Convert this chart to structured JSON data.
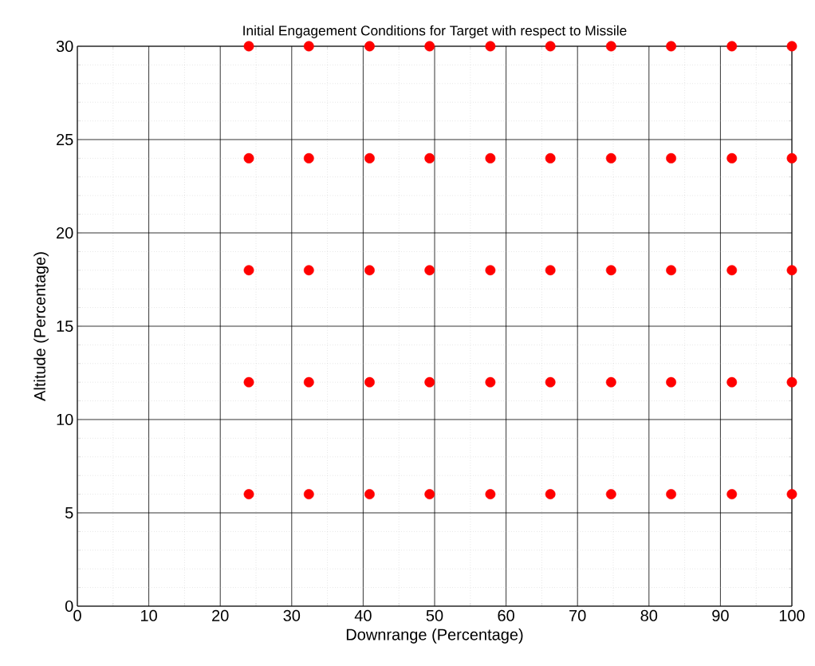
{
  "chart_data": {
    "type": "scatter",
    "title": "Initial Engagement Conditions for Target with respect to Missile",
    "xlabel": "Downrange (Percentage)",
    "ylabel": "Altitude (Percentage)",
    "series": [
      {
        "color": "#ff0000",
        "x": [
          24,
          24,
          24,
          24,
          24,
          32.4,
          32.4,
          32.4,
          32.4,
          32.4,
          40.9,
          40.9,
          40.9,
          40.9,
          40.9,
          49.3,
          49.3,
          49.3,
          49.3,
          49.3,
          57.8,
          57.8,
          57.8,
          57.8,
          57.8,
          66.2,
          66.2,
          66.2,
          66.2,
          66.2,
          74.7,
          74.7,
          74.7,
          74.7,
          74.7,
          83.1,
          83.1,
          83.1,
          83.1,
          83.1,
          91.6,
          91.6,
          91.6,
          91.6,
          91.6,
          100,
          100,
          100,
          100,
          100
        ],
        "values": [
          6,
          12,
          18,
          24,
          30,
          6,
          12,
          18,
          24,
          30,
          6,
          12,
          18,
          24,
          30,
          6,
          12,
          18,
          24,
          30,
          6,
          12,
          18,
          24,
          30,
          6,
          12,
          18,
          24,
          30,
          6,
          12,
          18,
          24,
          30,
          6,
          12,
          18,
          24,
          30,
          6,
          12,
          18,
          24,
          30,
          6,
          12,
          18,
          24,
          30
        ]
      }
    ],
    "xlim": [
      0,
      100
    ],
    "ylim": [
      0,
      30
    ],
    "xticks": [
      0,
      10,
      20,
      30,
      40,
      50,
      60,
      70,
      80,
      90,
      100
    ],
    "yticks": [
      0,
      5,
      10,
      15,
      20,
      25,
      30
    ],
    "grid": true,
    "marker": "circle"
  }
}
